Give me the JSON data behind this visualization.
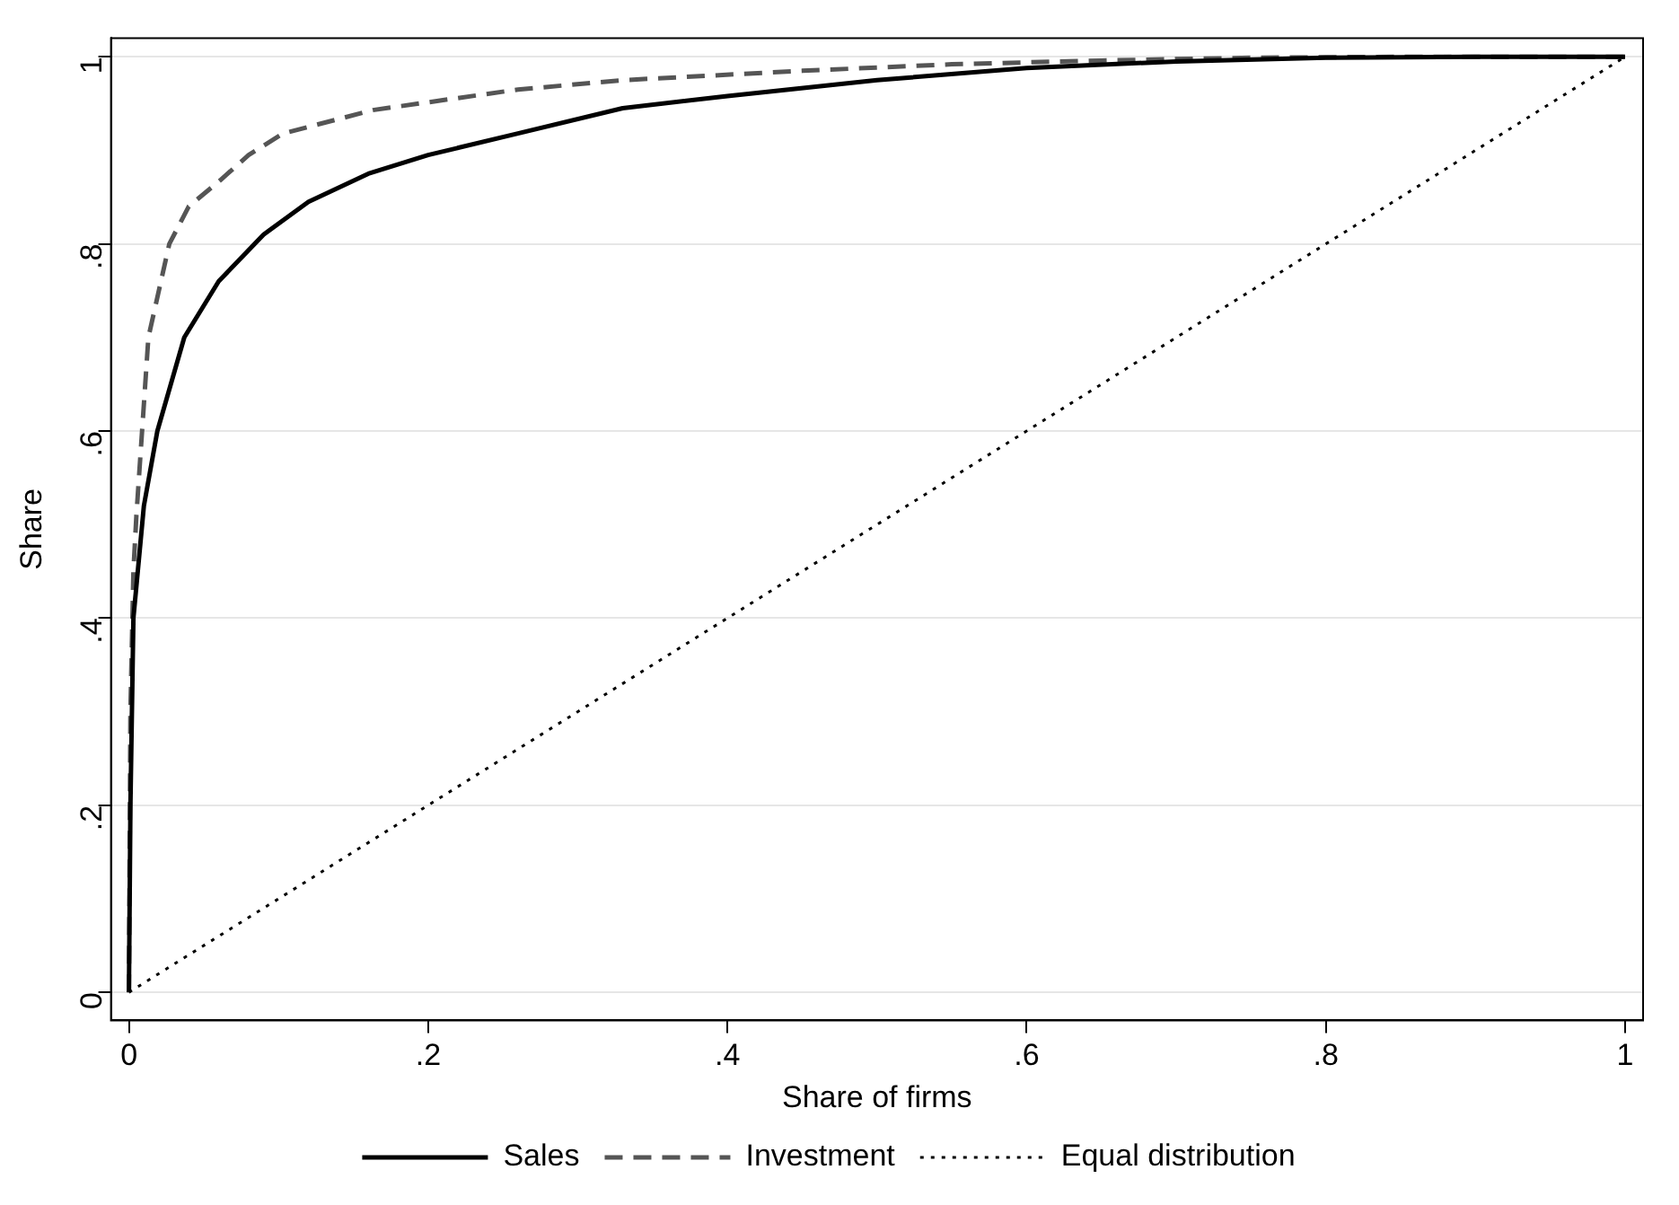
{
  "chart_data": {
    "type": "line",
    "xlabel": "Share of firms",
    "ylabel": "Share",
    "xlim": [
      -0.012,
      1.012
    ],
    "ylim": [
      -0.03,
      1.02
    ],
    "xticks": [
      0,
      {
        "value": 0.2,
        "label": ".2"
      },
      {
        "value": 0.4,
        "label": ".4"
      },
      {
        "value": 0.6,
        "label": ".6"
      },
      {
        "value": 0.8,
        "label": ".8"
      },
      1
    ],
    "yticks": [
      0,
      {
        "value": 0.2,
        "label": ".2"
      },
      {
        "value": 0.4,
        "label": ".4"
      },
      {
        "value": 0.6,
        "label": ".6"
      },
      {
        "value": 0.8,
        "label": ".8"
      },
      1
    ],
    "grid": "y",
    "legend": "bottom",
    "marker": "none",
    "series": [
      {
        "name": "Sales",
        "color": "#000000",
        "line_style": "solid",
        "x": [
          0,
          0.001,
          0.003,
          0.01,
          0.019,
          0.037,
          0.06,
          0.09,
          0.12,
          0.16,
          0.2,
          0.26,
          0.33,
          0.4,
          0.5,
          0.6,
          0.7,
          0.8,
          0.9,
          1
        ],
        "values": [
          0,
          0.2,
          0.4,
          0.52,
          0.6,
          0.7,
          0.76,
          0.81,
          0.845,
          0.875,
          0.895,
          0.918,
          0.945,
          0.958,
          0.975,
          0.988,
          0.995,
          0.999,
          1,
          1
        ]
      },
      {
        "name": "Investment",
        "color": "#555555",
        "line_style": "dashed",
        "x": [
          0,
          0.001,
          0.003,
          0.005,
          0.013,
          0.027,
          0.04,
          0.061,
          0.08,
          0.103,
          0.163,
          0.26,
          0.33,
          0.45,
          0.55,
          0.65,
          0.75,
          0.85,
          1
        ],
        "values": [
          0,
          0.3,
          0.45,
          0.51,
          0.7,
          0.8,
          0.84,
          0.868,
          0.895,
          0.918,
          0.943,
          0.965,
          0.975,
          0.985,
          0.992,
          0.996,
          0.999,
          1,
          1
        ]
      },
      {
        "name": "Equal distribution",
        "color": "#000000",
        "line_style": "dotted",
        "x": [
          0,
          1
        ],
        "values": [
          0,
          1
        ]
      }
    ]
  }
}
